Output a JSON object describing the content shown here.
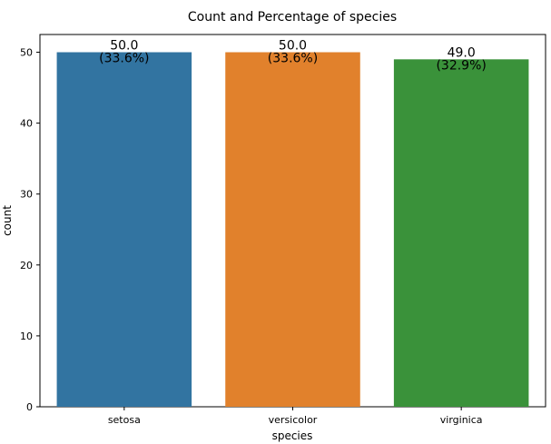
{
  "chart_data": {
    "type": "bar",
    "title": "Count and Percentage of species",
    "xlabel": "species",
    "ylabel": "count",
    "categories": [
      "setosa",
      "versicolor",
      "virginica"
    ],
    "values": [
      50,
      50,
      49
    ],
    "value_labels": [
      "50.0",
      "50.0",
      "49.0"
    ],
    "percent_labels": [
      "(33.6%)",
      "(33.6%)",
      "(32.9%)"
    ],
    "colors": [
      "#3274a1",
      "#e1812c",
      "#3a923a"
    ],
    "ylim": [
      0,
      52.5
    ],
    "yticks": [
      "0",
      "10",
      "20",
      "30",
      "40",
      "50"
    ],
    "grid": false,
    "legend": false
  }
}
